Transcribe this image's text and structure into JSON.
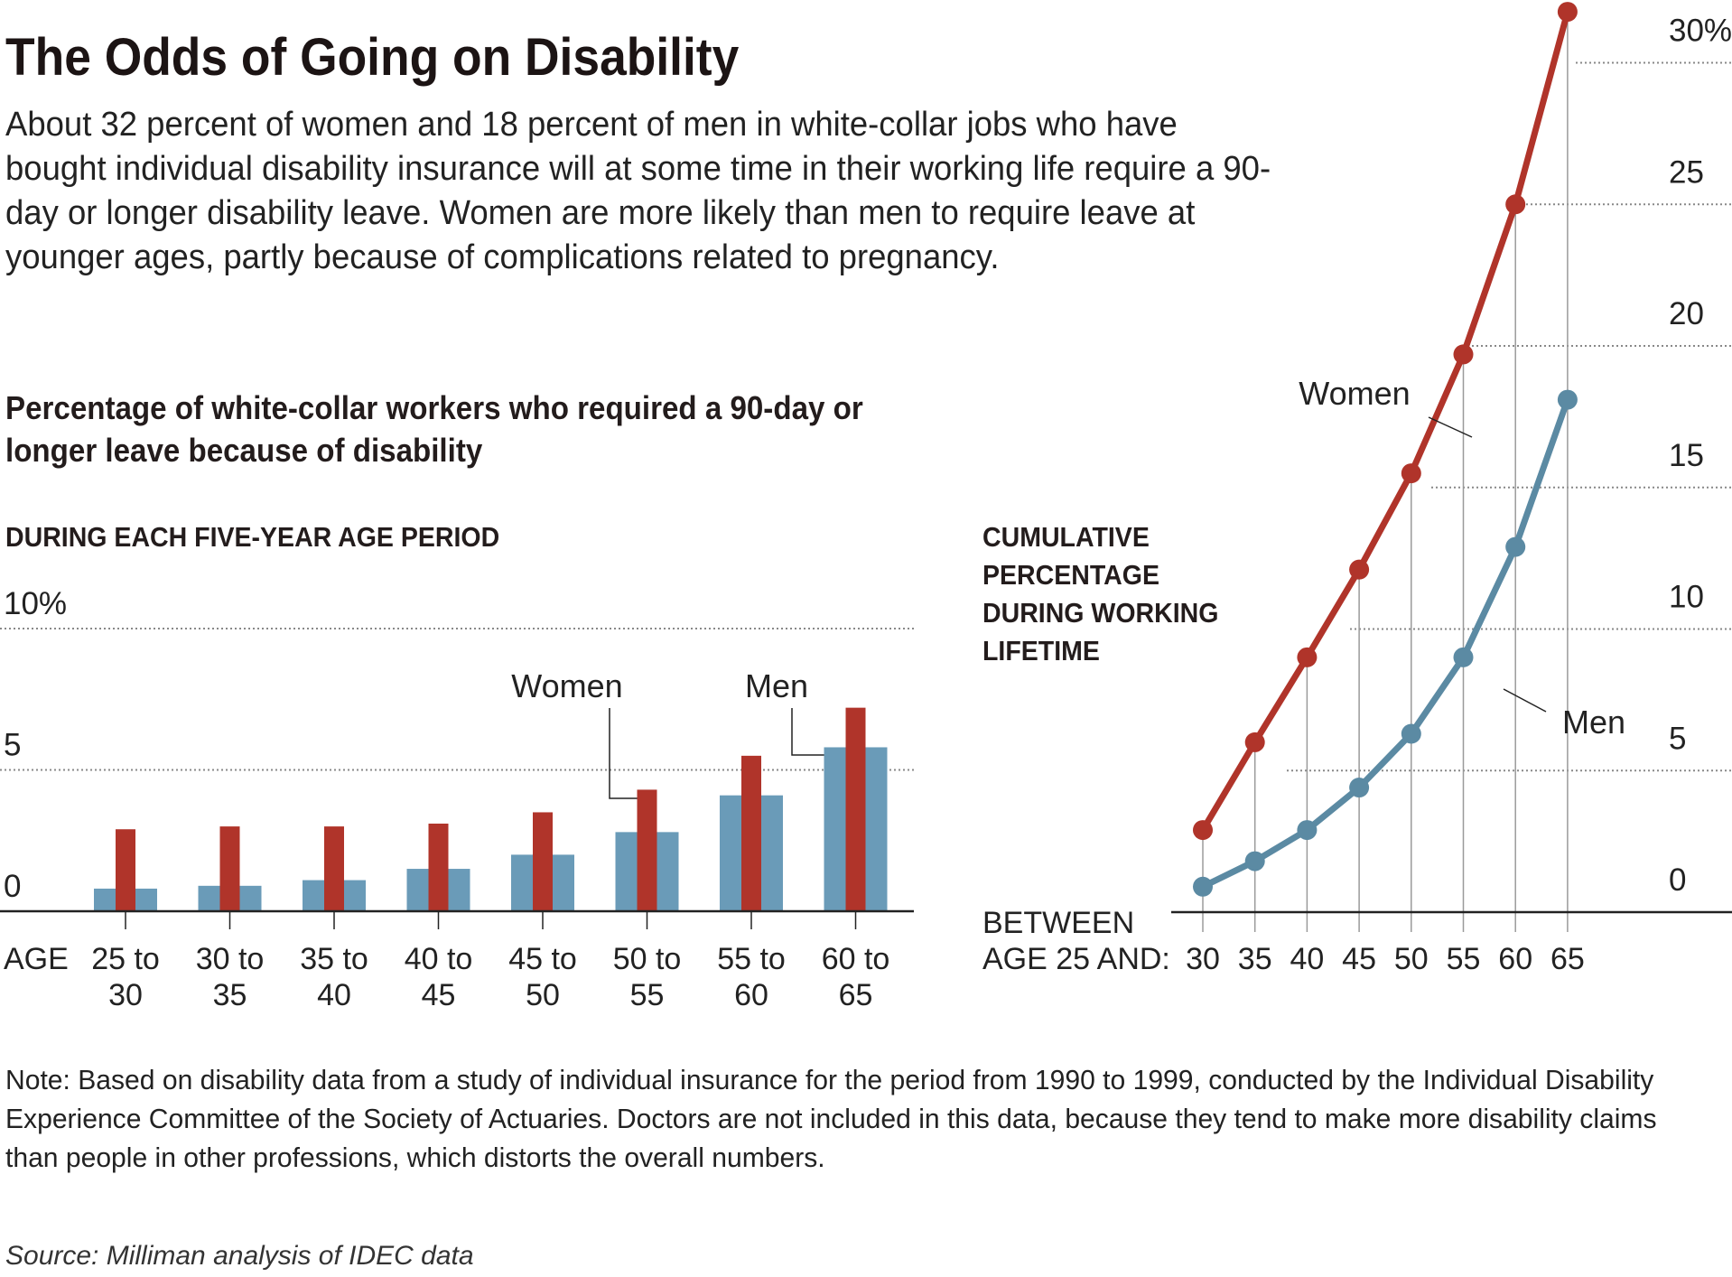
{
  "header": {
    "title": "The Odds of Going on Disability",
    "intro": "About 32 percent of women and 18 percent of men in white-collar jobs who have bought individual disability insurance will at some time in their working life require a 90-day or longer disability leave. Women are more likely than men to require leave at younger ages, partly because of complications related to pregnancy.",
    "subtitle": "Percentage of white-collar workers who required a 90-day or longer leave because of disability"
  },
  "footer": {
    "note": "Note: Based on disability data from a study of individual insurance for the period from 1990 to 1999, conducted by the Individual Disability Experience Committee of the Society of Actuaries. Doctors are not included in this data, because they tend to make more disability claims than people in other professions, which distorts the overall numbers.",
    "source": "Source: Milliman analysis of IDEC data"
  },
  "colors": {
    "women": "#b0342a",
    "men": "#6a9bb8",
    "men_line": "#5b8aa3",
    "grid": "#888888",
    "axis": "#222222"
  },
  "chart_data": [
    {
      "type": "bar",
      "title": "DURING EACH FIVE-YEAR AGE PERIOD",
      "xlabel": "AGE",
      "ylabel": "",
      "categories": [
        "25 to 30",
        "30 to 35",
        "35 to 40",
        "40 to 45",
        "45 to 50",
        "50 to 55",
        "55 to 60",
        "60 to 65"
      ],
      "series": [
        {
          "name": "Men",
          "values": [
            0.8,
            0.9,
            1.1,
            1.5,
            2.0,
            2.8,
            4.1,
            5.8
          ]
        },
        {
          "name": "Women",
          "values": [
            2.9,
            3.0,
            3.0,
            3.1,
            3.5,
            4.3,
            5.5,
            7.2
          ]
        }
      ],
      "ylim": [
        0,
        10
      ],
      "yticks": [
        0,
        5,
        10
      ],
      "ytick_labels": [
        "0",
        "5",
        "10%"
      ],
      "grid": true,
      "annotations": [
        "Women",
        "Men"
      ]
    },
    {
      "type": "line",
      "title": "CUMULATIVE PERCENTAGE DURING WORKING LIFETIME",
      "title_lines": [
        "CUMULATIVE",
        "PERCENTAGE",
        "DURING WORKING",
        "LIFETIME"
      ],
      "xlabel_lines": [
        "BETWEEN",
        "AGE 25 AND:"
      ],
      "ylabel": "",
      "x": [
        "30",
        "35",
        "40",
        "45",
        "50",
        "55",
        "60",
        "65"
      ],
      "series": [
        {
          "name": "Women",
          "values": [
            2.9,
            6.0,
            9.0,
            12.1,
            15.5,
            19.7,
            25.0,
            31.8
          ]
        },
        {
          "name": "Men",
          "values": [
            0.9,
            1.8,
            2.9,
            4.4,
            6.3,
            9.0,
            12.9,
            18.1
          ]
        }
      ],
      "ylim": [
        0,
        30
      ],
      "yticks": [
        0,
        5,
        10,
        15,
        20,
        25,
        30
      ],
      "ytick_labels": [
        "0",
        "5",
        "10",
        "15",
        "20",
        "25",
        "30%"
      ],
      "grid": true,
      "annotations": [
        "Women",
        "Men"
      ]
    }
  ]
}
